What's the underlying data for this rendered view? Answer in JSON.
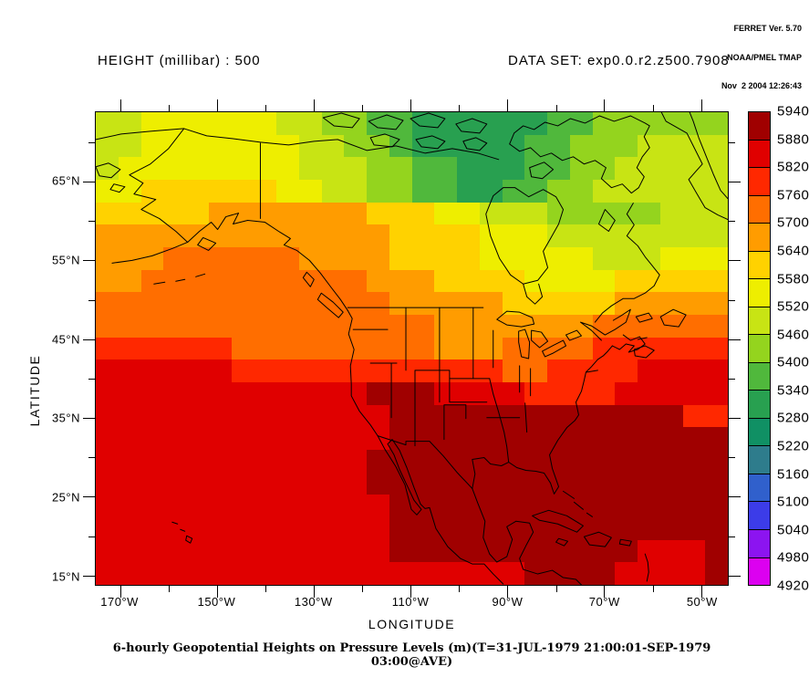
{
  "credits": {
    "line1": "FERRET Ver. 5.70",
    "line2": "NOAA/PMEL TMAP",
    "line3": "Nov  2 2004 12:26:43"
  },
  "header": {
    "title": "HEIGHT (millibar) : 500",
    "dataset": "DATA SET: exp0.0.r2.z500.7908"
  },
  "axes": {
    "y_label": "LATITUDE",
    "x_label": "LONGITUDE",
    "y_major": [
      {
        "label": "65°N",
        "pct": 14.7
      },
      {
        "label": "55°N",
        "pct": 31.3
      },
      {
        "label": "45°N",
        "pct": 48.0
      },
      {
        "label": "35°N",
        "pct": 64.7
      },
      {
        "label": "25°N",
        "pct": 81.3
      },
      {
        "label": "15°N",
        "pct": 98.0
      }
    ],
    "y_minor_pct": [
      6.3,
      23.0,
      39.7,
      56.3,
      73.0,
      89.7
    ],
    "x_major": [
      {
        "label": "170°W",
        "pct": 3.9
      },
      {
        "label": "150°W",
        "pct": 19.2
      },
      {
        "label": "130°W",
        "pct": 34.5
      },
      {
        "label": "110°W",
        "pct": 49.8
      },
      {
        "label": "90°W",
        "pct": 65.1
      },
      {
        "label": "70°W",
        "pct": 80.4
      },
      {
        "label": "50°W",
        "pct": 95.8
      }
    ],
    "x_minor_pct": [
      11.5,
      26.8,
      42.1,
      57.5,
      72.8,
      88.1
    ]
  },
  "colorbar": {
    "tick_labels": [
      "5940",
      "5880",
      "5820",
      "5760",
      "5700",
      "5640",
      "5580",
      "5520",
      "5460",
      "5400",
      "5340",
      "5280",
      "5220",
      "5160",
      "5100",
      "5040",
      "4980",
      "4920"
    ],
    "segments_top_to_bottom": [
      "#a00000",
      "#e00000",
      "#ff2800",
      "#ff6e00",
      "#ff9c00",
      "#ffd200",
      "#eeee00",
      "#c8e414",
      "#94d41e",
      "#50b83c",
      "#28a050",
      "#109064",
      "#2e7c8c",
      "#3060cc",
      "#3c3ce8",
      "#8c14f0",
      "#dc00f0"
    ]
  },
  "caption": "6-hourly Geopotential Heights on Pressure Levels (m)(T=31-JUL-1979 21:00:01-SEP-1979 03:00@AVE)",
  "chart_data": {
    "type": "heatmap",
    "title": "HEIGHT (millibar) : 500",
    "dataset": "exp0.0.r2.z500.7908",
    "units": "m",
    "xlabel": "LONGITUDE",
    "ylabel": "LATITUDE",
    "x_range": [
      "175°W",
      "44°W"
    ],
    "y_range": [
      "14°N",
      "74°N"
    ],
    "time_aggregation": "T=31-JUL-1979 21:00:01-SEP-1979 03:00@AVE",
    "colorbar_min": 4920,
    "colorbar_max": 5940,
    "colorbar_step": 60,
    "legend_position": "right",
    "palette": {
      "5": "#109064",
      "6": "#28a050",
      "7": "#50b83c",
      "8": "#94d41e",
      "9": "#c8e414",
      "a": "#eeee00",
      "b": "#ffd200",
      "c": "#ff9c00",
      "d": "#ff6e00",
      "e": "#ff2800",
      "f": "#e00000",
      "g": "#a00000"
    },
    "palette_value_ranges": {
      "5": "5220-5280",
      "6": "5280-5340",
      "7": "5340-5400",
      "8": "5400-5460",
      "9": "5460-5520",
      "a": "5520-5580",
      "b": "5580-5640",
      "c": "5640-5700",
      "d": "5700-5760",
      "e": "5760-5820",
      "f": "5820-5880",
      "g": "5880-5940"
    },
    "grid_cols": 28,
    "grid_encoding": "each char = palette key; columns west(175°W)→east(44°W), rows north(74°N)→south(14°N); approximate blocky field read from plot",
    "grid_rows": [
      "99aaaaaa99887766666677888888",
      "99aaaaaaa9988766666778889999",
      "9aaaaaaaa9998877666778899999",
      "aabbbbbbaa998877667788999999",
      "bbbbbcccccccbbbaa99988888999",
      "cccccccccccccbbbbaaa99999999",
      "cccddddddccccbbbbaaaaa999aaa",
      "ccddddddddddcccbbbbaaaabbbbb",
      "dddddddddddddcccccbbbbbccccc",
      "dddddddddddddddcccccccdddddd",
      "eeeeeedddddddddcccddddeeeeee",
      "ffffffeeeeeeeeeeeeddeeeeffff",
      "ffffffffffffgggffffeeeefffff",
      "fffffffffffffgggggggggggggee",
      "fffffffffffffggggggggggggggg",
      "ffffffffffffgggggggggggggggg",
      "ffffffffffffgggggggggggggggg",
      "fffffffffffffggggggggggggggg",
      "fffffffffffffggggggggggggggg",
      "fffffffffffffgggggggggggfffg",
      "fffffffffffffffffffggggffffg"
    ]
  }
}
